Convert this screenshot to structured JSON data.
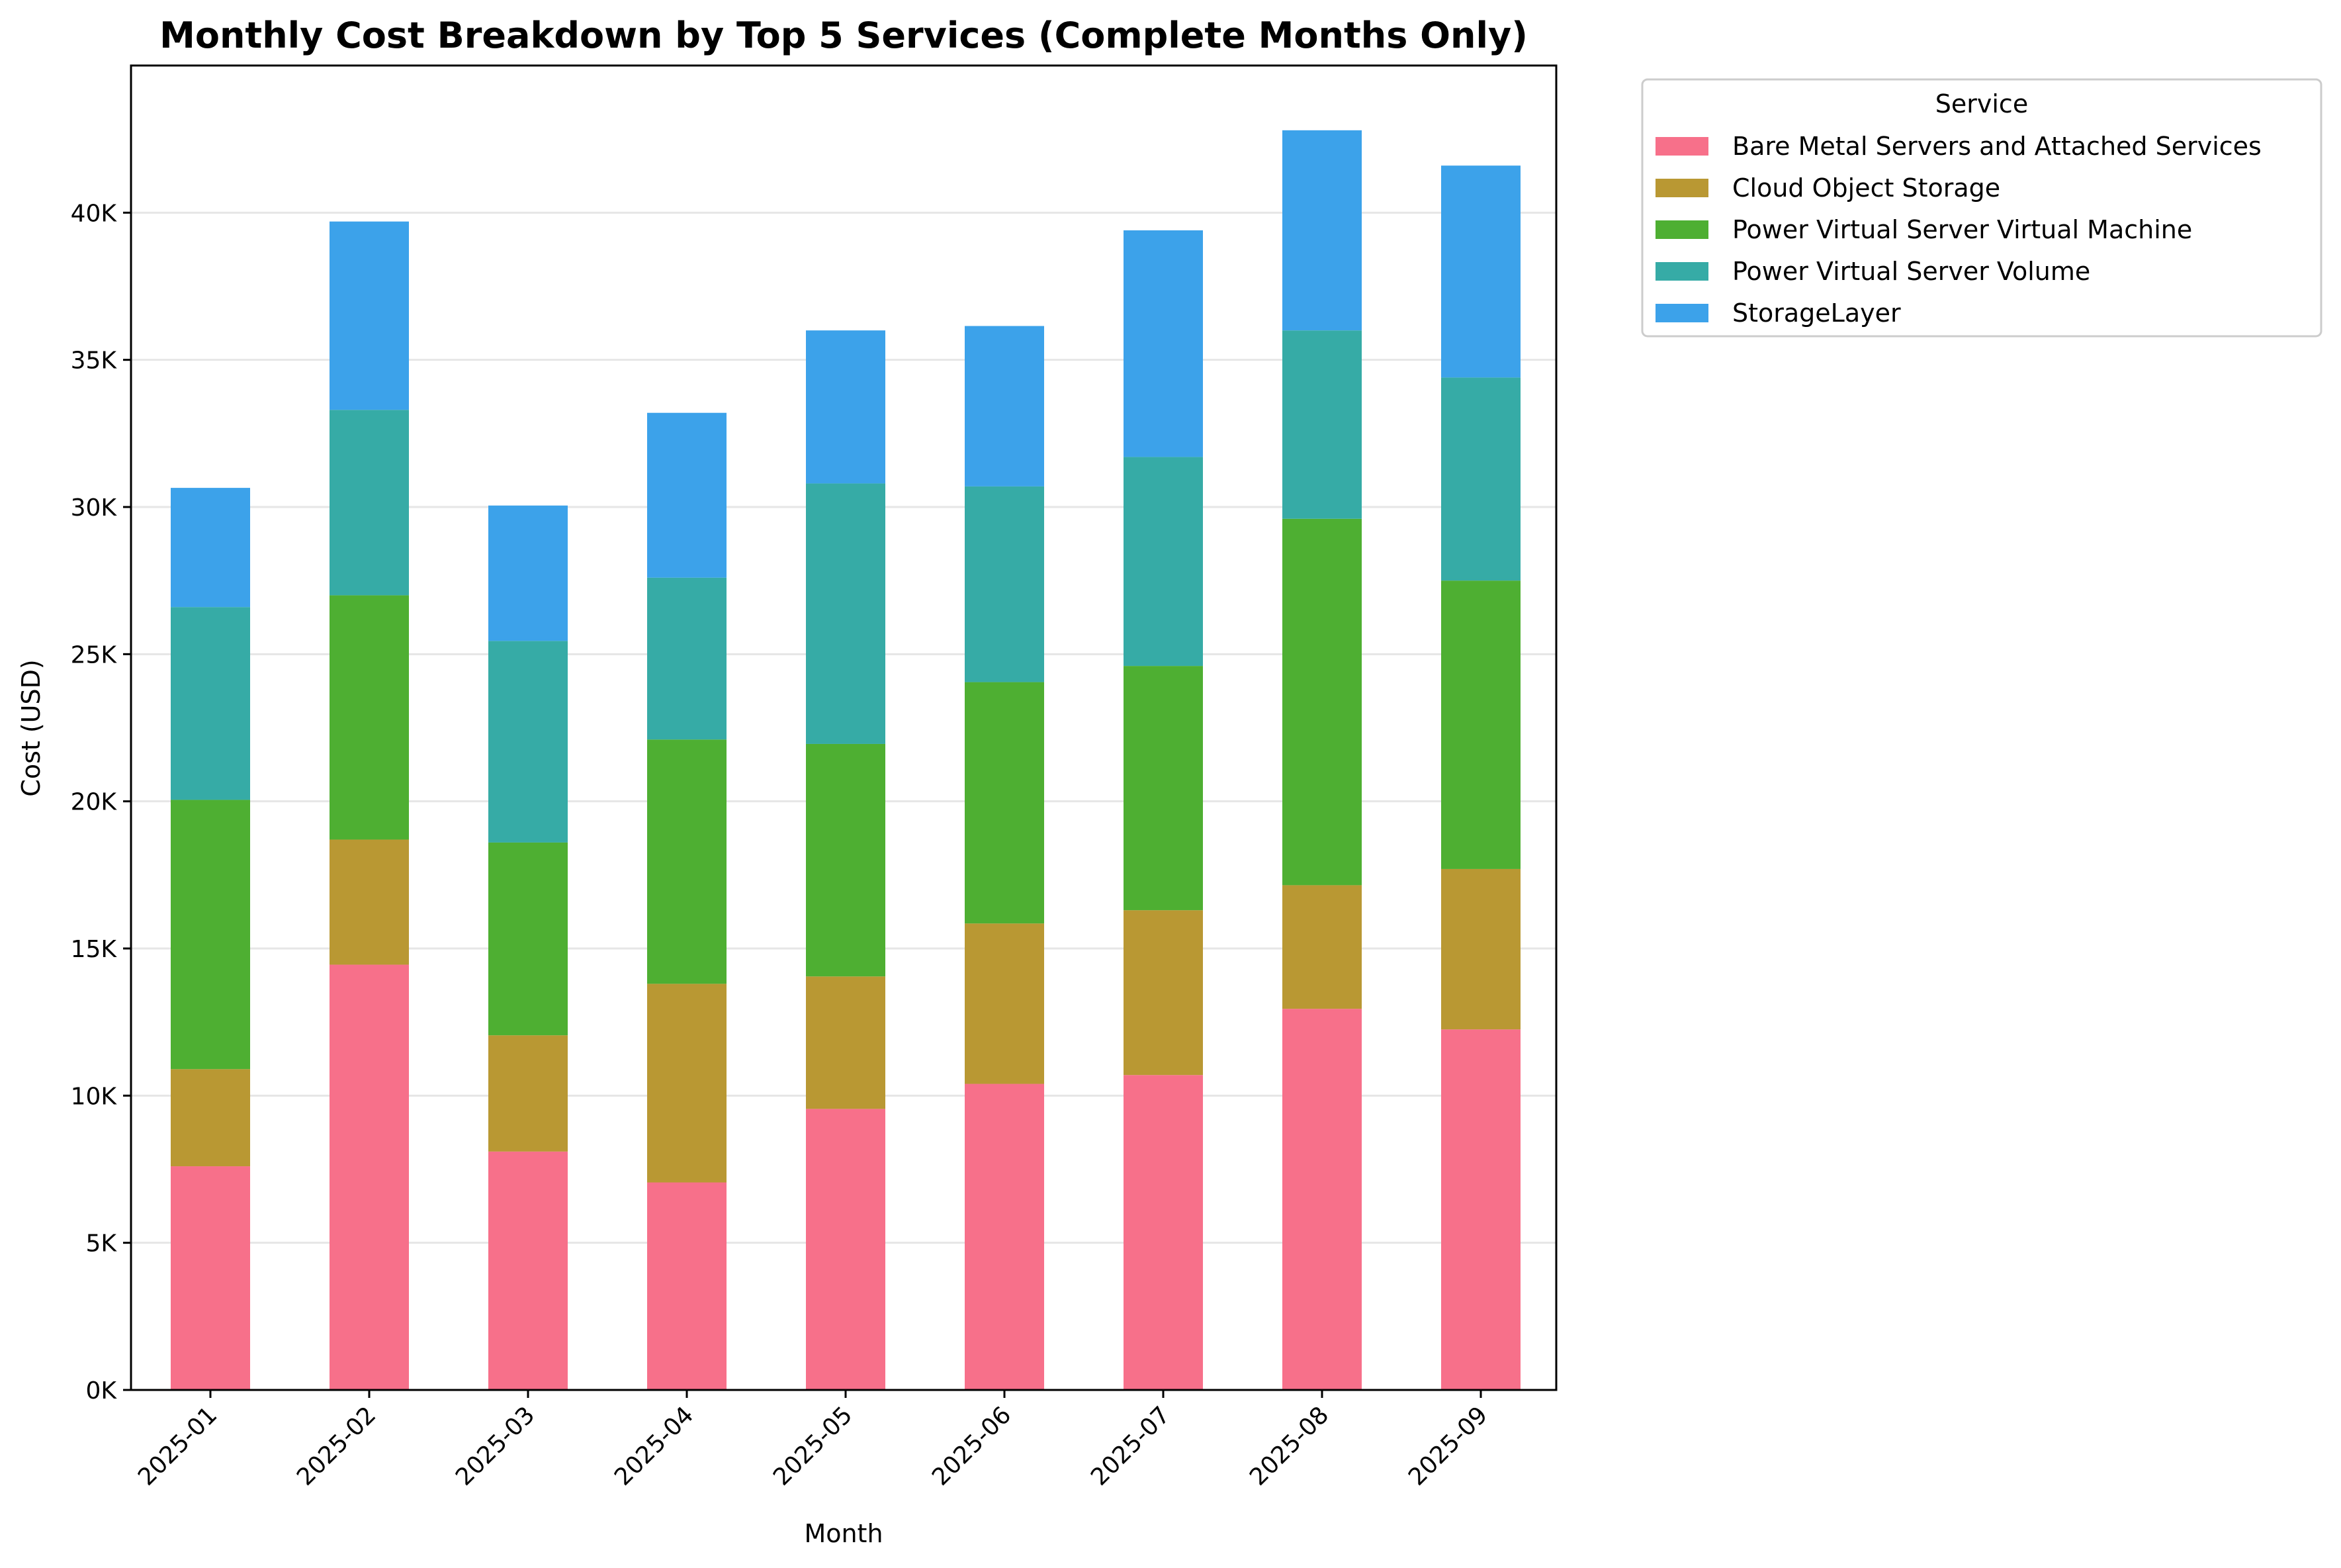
{
  "chart_data": {
    "type": "bar",
    "stacked": true,
    "title": "Monthly Cost Breakdown by Top 5 Services (Complete Months Only)",
    "xlabel": "Month",
    "ylabel": "Cost (USD)",
    "ylim": [
      0,
      45000
    ],
    "yticks": [
      0,
      5000,
      10000,
      15000,
      20000,
      25000,
      30000,
      35000,
      40000
    ],
    "ytick_labels": [
      "0K",
      "5K",
      "10K",
      "15K",
      "20K",
      "25K",
      "30K",
      "35K",
      "40K"
    ],
    "grid": "horizontal",
    "legend_title": "Service",
    "legend_position": "outside-top-right",
    "categories": [
      "2025-01",
      "2025-02",
      "2025-03",
      "2025-04",
      "2025-05",
      "2025-06",
      "2025-07",
      "2025-08",
      "2025-09"
    ],
    "series": [
      {
        "name": "Bare Metal Servers and Attached Services",
        "color": "#f7708a",
        "values": [
          7600,
          14450,
          8100,
          7050,
          9550,
          10400,
          10700,
          12950,
          12250
        ]
      },
      {
        "name": "Cloud Object Storage",
        "color": "#b99833",
        "values": [
          3300,
          4250,
          3950,
          6750,
          4500,
          5450,
          5600,
          4200,
          5450
        ]
      },
      {
        "name": "Power Virtual Server Virtual Machine",
        "color": "#4eaf32",
        "values": [
          9150,
          8300,
          6550,
          8300,
          7900,
          8200,
          8300,
          12450,
          9800
        ]
      },
      {
        "name": "Power Virtual Server Volume",
        "color": "#36aba6",
        "values": [
          6550,
          6300,
          6850,
          5500,
          8850,
          6650,
          7100,
          6400,
          6900
        ]
      },
      {
        "name": "StorageLayer",
        "color": "#3ca2ea",
        "values": [
          4050,
          6400,
          4600,
          5600,
          5200,
          5450,
          7700,
          6800,
          7200
        ]
      }
    ]
  }
}
